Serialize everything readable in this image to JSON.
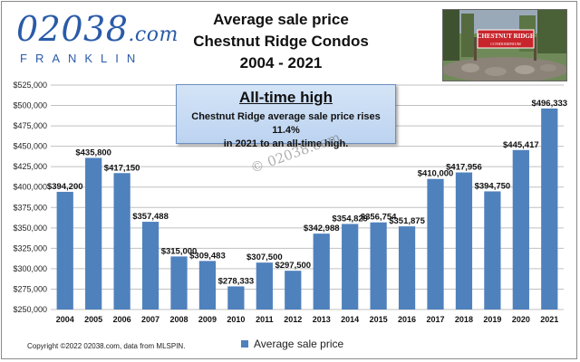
{
  "logo": {
    "main": "02038",
    "suffix": ".com",
    "sub": "FRANKLIN"
  },
  "header": {
    "title_lines": [
      "Average sale price",
      "Chestnut Ridge Condos",
      "2004 - 2021"
    ]
  },
  "photo": {
    "sign_line1": "CHESTNUT RIDGE",
    "sign_line2": "CONDOMINIUM"
  },
  "callout": {
    "title": "All-time high",
    "body_line1": "Chestnut Ridge average sale price rises 11.4%",
    "body_line2": "in 2021 to an all-time high."
  },
  "watermark": "© 02038.com",
  "footer": {
    "copyright": "Copyright ©2022 02038.com, data from MLSPIN."
  },
  "colors": {
    "bar": "#4f81bd",
    "grid": "#c0c0c0",
    "brand": "#2a5ba8"
  },
  "chart_data": {
    "type": "bar",
    "categories": [
      "2004",
      "2005",
      "2006",
      "2007",
      "2008",
      "2009",
      "2010",
      "2011",
      "2012",
      "2013",
      "2014",
      "2015",
      "2016",
      "2017",
      "2018",
      "2019",
      "2020",
      "2021"
    ],
    "series": [
      {
        "name": "Average sale price",
        "values": [
          394200,
          435800,
          417150,
          357488,
          315000,
          309483,
          278333,
          307500,
          297500,
          342988,
          354829,
          356754,
          351875,
          410000,
          417956,
          394750,
          445417,
          496333
        ],
        "labels": [
          "$394,200",
          "$435,800",
          "$417,150",
          "$357,488",
          "$315,000",
          "$309,483",
          "$278,333",
          "$307,500",
          "$297,500",
          "$342,988",
          "$354,829",
          "$356,754",
          "$351,875",
          "$410,000",
          "$417,956",
          "$394,750",
          "$445,417",
          "$496,333"
        ]
      }
    ],
    "ylim": [
      250000,
      525000
    ],
    "yticks": [
      250000,
      275000,
      300000,
      325000,
      350000,
      375000,
      400000,
      425000,
      450000,
      475000,
      500000,
      525000
    ],
    "ytick_labels": [
      "$250,000",
      "$275,000",
      "$300,000",
      "$325,000",
      "$350,000",
      "$375,000",
      "$400,000",
      "$425,000",
      "$450,000",
      "$475,000",
      "$500,000",
      "$525,000"
    ],
    "grid": true,
    "legend": "bottom-center"
  }
}
